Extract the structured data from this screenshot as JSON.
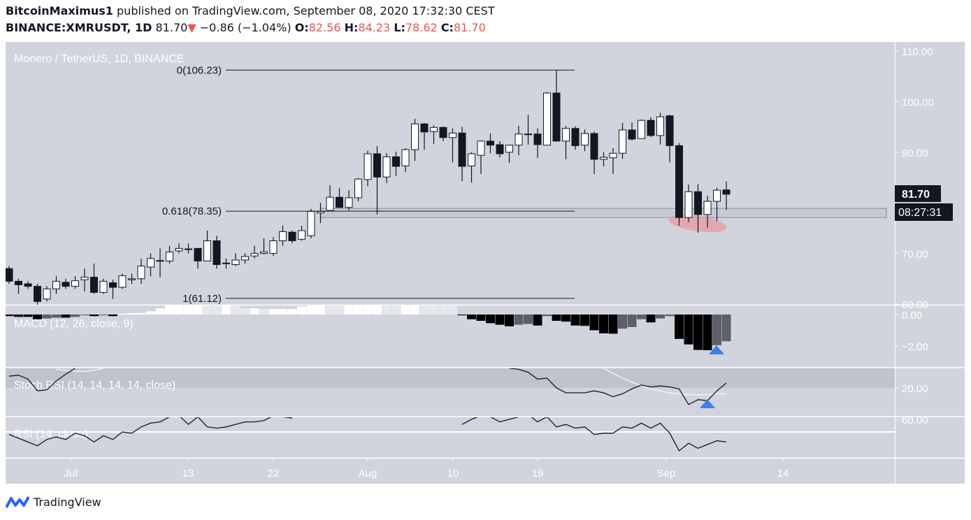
{
  "header": {
    "author": "BitcoinMaximus1",
    "published": "published on TradingView.com, September 08, 2020 17:32:30 CEST",
    "symbol": "BINANCE:XMRUSDT, 1D",
    "last": "81.70",
    "change": "−0.86 (−1.04%)",
    "o_label": "O:",
    "o": "82.56",
    "h_label": "H:",
    "h": "84.23",
    "l_label": "L:",
    "l": "78.62",
    "c_label": "C:",
    "c": "81.70"
  },
  "footer": {
    "brand": "TradingView"
  },
  "colors": {
    "background": "#d1d4dc",
    "bull_body": "#ffffff",
    "bear_body": "#131722",
    "down_red": "#ef5350",
    "highlight": "#e79aa3",
    "arrow_blue": "#3d7fe6",
    "zone": "#c3c6cf"
  },
  "chart_data": {
    "type": "candlestick",
    "title": "Monero / TetherUS, 1D, BINANCE",
    "x_ticks": [
      "Jul",
      "13",
      "22",
      "Aug",
      "10",
      "19",
      "Sep",
      "14"
    ],
    "y_ticks": [
      "110.00",
      "100.00",
      "90.00",
      "70.00",
      "60.00"
    ],
    "ylim": [
      60,
      110
    ],
    "last_price_label": "81.70",
    "countdown_label": "08:27:31",
    "fib_levels": [
      {
        "label": "0(106.23)",
        "value": 106.23
      },
      {
        "label": "0.618(78.35)",
        "value": 78.35
      },
      {
        "label": "1(61.12)",
        "value": 61.12
      }
    ],
    "support_zone": [
      77.1,
      78.9
    ],
    "ohlc": [
      [
        67,
        67.5,
        64,
        64.5
      ],
      [
        64.5,
        65,
        62,
        63.8
      ],
      [
        64,
        64.5,
        63,
        63.5
      ],
      [
        63.5,
        64,
        59.5,
        60.5
      ],
      [
        61,
        63.5,
        60.5,
        63
      ],
      [
        63,
        65.5,
        62,
        64.5
      ],
      [
        64.3,
        65,
        63,
        63.5
      ],
      [
        63.5,
        65.5,
        63,
        64.6
      ],
      [
        64.8,
        67,
        62.5,
        65.3
      ],
      [
        65.3,
        68,
        62,
        62.3
      ],
      [
        62.3,
        65,
        62,
        64.5
      ],
      [
        64.2,
        64.8,
        61,
        63.3
      ],
      [
        63.3,
        66,
        63,
        65.6
      ],
      [
        64.8,
        66,
        64,
        65
      ],
      [
        65,
        69,
        64,
        67.5
      ],
      [
        67.3,
        70,
        65.5,
        69
      ],
      [
        68.5,
        71,
        65.3,
        68.6
      ],
      [
        68.5,
        71.5,
        68,
        70.3
      ],
      [
        70.5,
        72,
        70,
        71
      ],
      [
        70.8,
        72,
        70,
        70.9
      ],
      [
        71,
        71,
        67,
        68.5
      ],
      [
        68.5,
        74.5,
        68.5,
        72.5
      ],
      [
        72.5,
        73.5,
        67,
        67.8
      ],
      [
        68,
        69,
        67,
        68.1
      ],
      [
        67.8,
        70,
        67.5,
        68.7
      ],
      [
        68.7,
        70,
        68,
        69.4
      ],
      [
        69.5,
        71.5,
        69,
        70
      ],
      [
        70,
        73,
        69.8,
        70.3
      ],
      [
        70,
        73.2,
        69.5,
        72.5
      ],
      [
        72.5,
        75.5,
        71.5,
        74.3
      ],
      [
        74.2,
        74.5,
        72,
        72.5
      ],
      [
        72.8,
        75.5,
        72.5,
        74.5
      ],
      [
        73.5,
        78.8,
        73,
        78.3
      ],
      [
        78,
        80,
        76,
        78.3
      ],
      [
        78.5,
        83.5,
        78.3,
        81.1
      ],
      [
        81.1,
        82.9,
        79,
        79.1
      ],
      [
        79.1,
        82.5,
        78.5,
        81
      ],
      [
        81,
        84.9,
        80.3,
        84.7
      ],
      [
        84.6,
        90.3,
        83.3,
        89.7
      ],
      [
        89.7,
        91.2,
        77.7,
        85.1
      ],
      [
        85.1,
        89.8,
        83.9,
        89.1
      ],
      [
        89.1,
        90.1,
        85.3,
        87.2
      ],
      [
        87.3,
        90.8,
        86.1,
        90.5
      ],
      [
        90.5,
        96.6,
        88.3,
        95.6
      ],
      [
        95.6,
        95.8,
        90.5,
        94
      ],
      [
        94.1,
        95.3,
        91.6,
        94.9
      ],
      [
        94.9,
        95.1,
        92.2,
        92.9
      ],
      [
        92.9,
        94.7,
        88,
        93.8
      ],
      [
        93.8,
        95,
        84.3,
        87.2
      ],
      [
        87.3,
        90,
        84,
        89.7
      ],
      [
        89.4,
        92.3,
        85.7,
        92.2
      ],
      [
        92.2,
        93.7,
        89.8,
        91.4
      ],
      [
        91.5,
        92.2,
        89,
        89.7
      ],
      [
        90,
        91.5,
        87.9,
        91.4
      ],
      [
        91.4,
        95.2,
        89.4,
        93.6
      ],
      [
        93.6,
        97.4,
        91.5,
        93.6
      ],
      [
        93.6,
        94.7,
        88.9,
        91.5
      ],
      [
        91.4,
        101.9,
        91.4,
        101.7
      ],
      [
        101.7,
        106.23,
        92.1,
        92.2
      ],
      [
        92.2,
        95.2,
        88.6,
        94.7
      ],
      [
        94.7,
        95.1,
        90.5,
        91.3
      ],
      [
        91.4,
        94.5,
        90.2,
        93.7
      ],
      [
        93.7,
        94.1,
        85.7,
        88.6
      ],
      [
        88.6,
        90,
        87.2,
        89
      ],
      [
        88.9,
        90.8,
        85.7,
        89.8
      ],
      [
        89.8,
        95.8,
        88.7,
        94.4
      ],
      [
        94.4,
        95.9,
        92.3,
        92.6
      ],
      [
        92.7,
        96.5,
        92.7,
        96.3
      ],
      [
        96.3,
        96.9,
        93,
        93.3
      ],
      [
        93.3,
        97.8,
        91.5,
        97
      ],
      [
        97.2,
        97.4,
        88,
        91.3
      ],
      [
        91.3,
        91.8,
        75.5,
        77.1
      ],
      [
        77.1,
        83.6,
        76.2,
        82.2
      ],
      [
        82.2,
        83.7,
        74.1,
        77.7
      ],
      [
        77.7,
        81.4,
        75.1,
        80.3
      ],
      [
        80.3,
        83,
        76.4,
        82.5
      ],
      [
        82.56,
        84.23,
        78.62,
        81.7
      ]
    ],
    "macd": {
      "title": "MACD (12, 26, close, 9)",
      "y_ticks": [
        "0.00",
        "−2.00"
      ],
      "histogram": [
        -0.1,
        -0.15,
        -0.15,
        -0.3,
        -0.25,
        -0.2,
        -0.2,
        -0.15,
        -0.05,
        -0.1,
        -0.05,
        -0.1,
        0.05,
        0.08,
        0.1,
        0.2,
        0.4,
        0.7,
        0.8,
        0.85,
        0.9,
        0.85,
        0.8,
        0.9,
        0.6,
        0.4,
        0.4,
        0.35,
        0.35,
        0.35,
        0.35,
        0.5,
        0.9,
        1.0,
        0.95,
        0.9,
        1.0,
        1.1,
        1.2,
        1.3,
        1.25,
        1.2,
        1.3,
        1.4,
        1.3,
        1.2,
        1.1,
        1.0,
        -0.05,
        -0.3,
        -0.4,
        -0.55,
        -0.65,
        -0.75,
        -0.65,
        -0.6,
        -0.7,
        -0.1,
        -0.4,
        -0.45,
        -0.7,
        -0.72,
        -1.0,
        -1.2,
        -1.22,
        -0.9,
        -0.8,
        -0.3,
        -0.5,
        -0.25,
        -0.1,
        -1.55,
        -1.9,
        -2.25,
        -2.27,
        -1.95,
        -1.7
      ]
    },
    "stoch_rsi": {
      "title": "Stoch RSI (14, 14, 14, 14, close)",
      "y_ticks": [
        "20.00"
      ],
      "k": [
        32,
        33,
        29,
        17,
        18,
        27,
        34,
        40,
        null,
        null,
        null,
        null,
        null,
        null,
        null,
        null,
        null,
        null,
        null,
        null,
        null,
        null,
        null,
        null,
        null,
        null,
        null,
        null,
        null,
        null,
        null,
        null,
        null,
        null,
        null,
        null,
        null,
        null,
        null,
        null,
        null,
        null,
        null,
        null,
        null,
        null,
        null,
        null,
        null,
        null,
        null,
        null,
        null,
        40,
        39,
        36,
        29,
        30,
        20,
        15,
        15,
        15,
        17,
        15,
        11,
        14,
        19,
        23,
        21,
        22,
        21,
        19,
        3,
        8,
        7,
        17,
        25
      ],
      "d": [
        null,
        null,
        null,
        null,
        null,
        39,
        38,
        37,
        37,
        38,
        40,
        null,
        null,
        null,
        null,
        null,
        null,
        null,
        null,
        null,
        null,
        null,
        null,
        null,
        null,
        null,
        null,
        null,
        null,
        null,
        null,
        null,
        null,
        null,
        null,
        null,
        null,
        null,
        null,
        null,
        null,
        null,
        null,
        null,
        null,
        null,
        null,
        null,
        null,
        null,
        null,
        null,
        null,
        null,
        null,
        null,
        null,
        null,
        null,
        null,
        null,
        null,
        null,
        40,
        35,
        30,
        26,
        22,
        19,
        17,
        15,
        14,
        13,
        13,
        13,
        14,
        14
      ]
    },
    "rsi": {
      "title": "RSI (14, close)",
      "y_ticks": [
        "60.00"
      ],
      "values": [
        48,
        45,
        42,
        39,
        44,
        46,
        44,
        49,
        47,
        42,
        47,
        44,
        50,
        49,
        54,
        57,
        58,
        62,
        63,
        56,
        62,
        54,
        53,
        54,
        56,
        58,
        58,
        59,
        63,
        62,
        61,
        null,
        null,
        null,
        null,
        null,
        null,
        null,
        null,
        null,
        null,
        null,
        null,
        null,
        null,
        null,
        null,
        null,
        56,
        60,
        63,
        62,
        58,
        60,
        62,
        64,
        58,
        62,
        54,
        56,
        53,
        54,
        48,
        49,
        49,
        54,
        53,
        57,
        53,
        57,
        49,
        35,
        41,
        37,
        40,
        43,
        42
      ]
    }
  }
}
